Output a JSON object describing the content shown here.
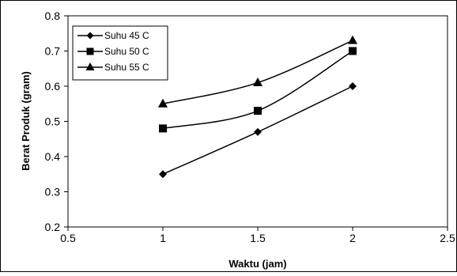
{
  "chart_data": {
    "type": "line",
    "title": "",
    "xlabel": "Waktu (jam)",
    "ylabel": "Berat Produk (gram)",
    "xlim": [
      0.5,
      2.5
    ],
    "ylim": [
      0.2,
      0.8
    ],
    "x_ticks": [
      "0.5",
      "1",
      "1.5",
      "2",
      "2.5"
    ],
    "y_ticks": [
      "0.2",
      "0.3",
      "0.4",
      "0.5",
      "0.6",
      "0.7",
      "0.8"
    ],
    "grid": false,
    "legend_position": "top-left",
    "x": [
      1,
      1.5,
      2
    ],
    "series": [
      {
        "name": "Suhu 45 C",
        "marker": "diamond",
        "values": [
          0.35,
          0.47,
          0.6
        ]
      },
      {
        "name": "Suhu 50 C",
        "marker": "square",
        "values": [
          0.48,
          0.53,
          0.7
        ]
      },
      {
        "name": "Suhu 55 C",
        "marker": "triangle",
        "values": [
          0.55,
          0.61,
          0.73
        ]
      }
    ],
    "colors": {
      "line": "#000000",
      "background": "#ffffff",
      "frame": "#000000"
    }
  }
}
